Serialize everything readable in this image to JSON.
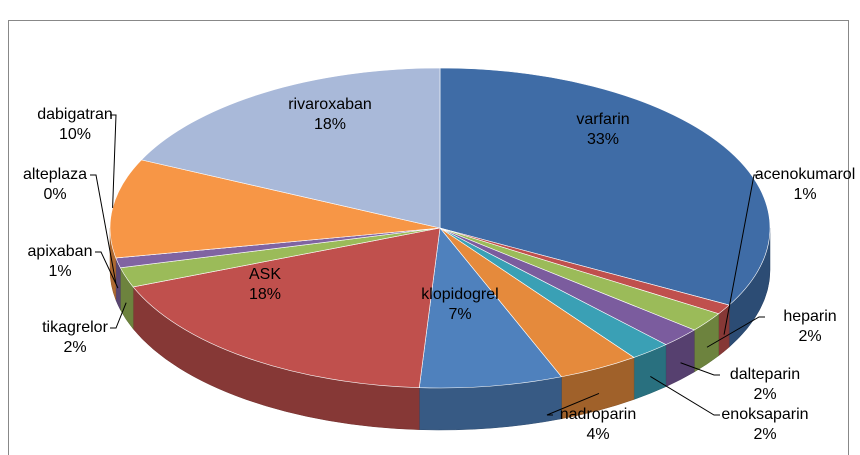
{
  "chart_data": {
    "type": "pie",
    "categories": [
      "varfarin",
      "acenokumarol",
      "heparin",
      "dalteparin",
      "enoksaparin",
      "nadroparin",
      "klopidogrel",
      "ASK",
      "tikagrelor",
      "apixaban",
      "alteplaza",
      "dabigatran",
      "rivaroxaban"
    ],
    "values": [
      33,
      1,
      2,
      2,
      2,
      4,
      7,
      18,
      2,
      1,
      0,
      10,
      18
    ],
    "value_labels": [
      "33%",
      "1%",
      "2%",
      "2%",
      "2%",
      "4%",
      "7%",
      "18%",
      "2%",
      "1%",
      "0%",
      "10%",
      "18%"
    ],
    "colors": [
      "#3f6ca6",
      "#c0504d",
      "#9bbb59",
      "#7b5c9e",
      "#3aa0b5",
      "#e58a3c",
      "#4f81bd",
      "#c0504d",
      "#9bbb59",
      "#8064a2",
      "#4bacc6",
      "#f79646",
      "#a9b9d9"
    ]
  }
}
